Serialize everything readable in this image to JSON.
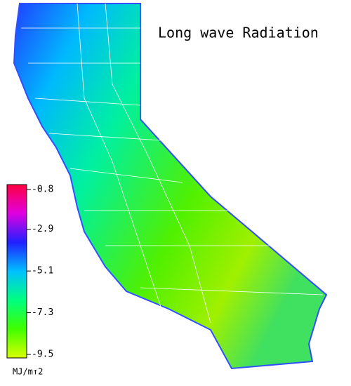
{
  "title": "Long wave Radiation",
  "colorbar": {
    "ticks": [
      -0.8,
      -2.9,
      -5.1,
      -7.3,
      -9.5
    ],
    "unit": "MJ/m↑2",
    "colors": [
      "#ff0040",
      "#e000e0",
      "#2020ff",
      "#00c0ff",
      "#00ff80",
      "#40ff00",
      "#d8ff00"
    ]
  }
}
